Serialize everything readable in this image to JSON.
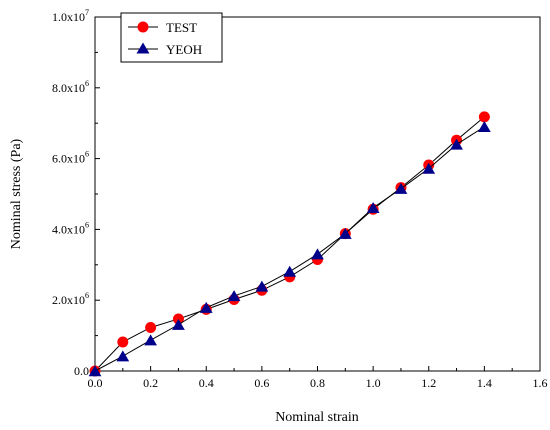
{
  "chart_data": {
    "type": "line",
    "xlabel": "Nominal strain",
    "ylabel": "Nominal stress (Pa)",
    "xlim": [
      0,
      1.6
    ],
    "ylim": [
      0,
      10000000
    ],
    "x_ticks": [
      0.0,
      0.2,
      0.4,
      0.6,
      0.8,
      1.0,
      1.2,
      1.4,
      1.6
    ],
    "x_tick_labels": [
      "0.0",
      "0.2",
      "0.4",
      "0.6",
      "0.8",
      "1.0",
      "1.2",
      "1.4",
      "1.6"
    ],
    "y_ticks": [
      {
        "value": 0,
        "mantissa": "0.0",
        "times": "",
        "exponent": ""
      },
      {
        "value": 2000000,
        "mantissa": "2.0",
        "times": "x10",
        "exponent": "6"
      },
      {
        "value": 4000000,
        "mantissa": "4.0",
        "times": "x10",
        "exponent": "6"
      },
      {
        "value": 6000000,
        "mantissa": "6.0",
        "times": "x10",
        "exponent": "6"
      },
      {
        "value": 8000000,
        "mantissa": "8.0",
        "times": "x10",
        "exponent": "6"
      },
      {
        "value": 10000000,
        "mantissa": "1.0",
        "times": "x10",
        "exponent": "7"
      }
    ],
    "grid": false,
    "legend_position": "top-left",
    "x": [
      0,
      0.1,
      0.2,
      0.3,
      0.4,
      0.5,
      0.6,
      0.7,
      0.8,
      0.9,
      1.0,
      1.1,
      1.2,
      1.3,
      1.4
    ],
    "series": [
      {
        "name": "TEST",
        "marker": "circle",
        "color": "#ff0000",
        "line_color": "#000000",
        "values": [
          0,
          820000,
          1230000,
          1470000,
          1740000,
          2020000,
          2280000,
          2660000,
          3150000,
          3880000,
          4570000,
          5180000,
          5820000,
          6520000,
          7180000
        ]
      },
      {
        "name": "YEOH",
        "marker": "triangle",
        "color": "#00008b",
        "line_color": "#000000",
        "values": [
          0,
          420000,
          870000,
          1310000,
          1790000,
          2120000,
          2390000,
          2810000,
          3300000,
          3880000,
          4610000,
          5150000,
          5720000,
          6400000,
          6900000
        ]
      }
    ]
  }
}
